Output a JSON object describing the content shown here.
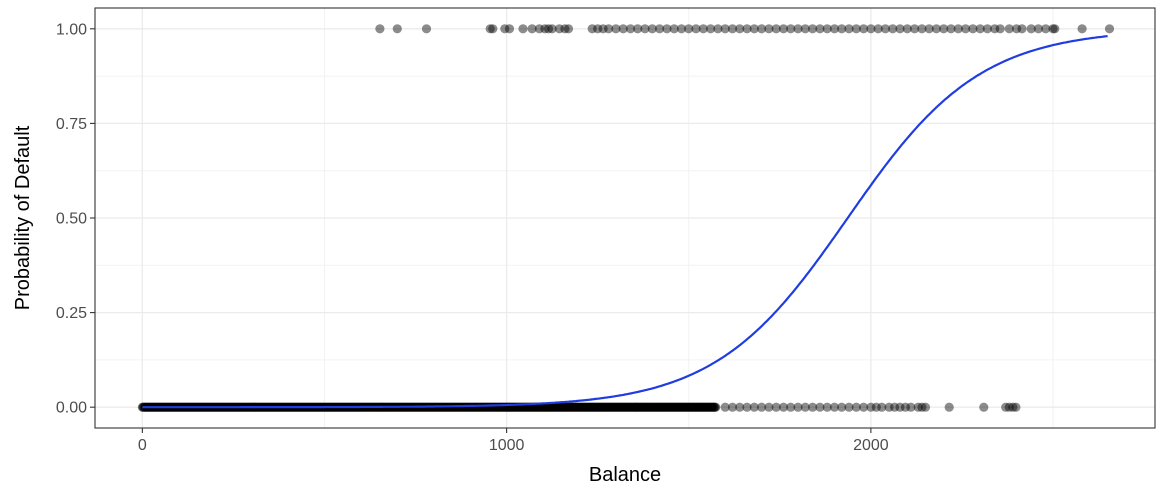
{
  "chart_data": {
    "type": "scatter",
    "title": "",
    "xlabel": "Balance",
    "ylabel": "Probability of Default",
    "xlim": [
      -130,
      2780
    ],
    "ylim": [
      -0.055,
      1.055
    ],
    "x_ticks": [
      0,
      1000,
      2000
    ],
    "x_tick_labels": [
      "0",
      "1000",
      "2000"
    ],
    "y_ticks": [
      0,
      0.25,
      0.5,
      0.75,
      1
    ],
    "y_tick_labels": [
      "0.00",
      "0.25",
      "0.50",
      "0.75",
      "1.00"
    ],
    "grid": true,
    "legend": "none",
    "point_color": "#000000",
    "point_opacity": 0.45,
    "curve_color": "#1f3de0",
    "series": [
      {
        "type": "scatter",
        "points_default_1": [
          [
            652,
            1
          ],
          [
            700,
            1
          ],
          [
            780,
            1
          ],
          [
            955,
            1
          ],
          [
            962,
            1
          ],
          [
            995,
            1
          ],
          [
            1008,
            1
          ],
          [
            1045,
            1
          ],
          [
            1070,
            1
          ],
          [
            1090,
            1
          ],
          [
            1105,
            1
          ],
          [
            1115,
            1
          ],
          [
            1125,
            1
          ],
          [
            1145,
            1
          ],
          [
            1160,
            1
          ],
          [
            1170,
            1
          ],
          [
            1235,
            1
          ],
          [
            1250,
            1
          ],
          [
            1265,
            1
          ],
          [
            1280,
            1
          ],
          [
            1300,
            1
          ],
          [
            1320,
            1
          ],
          [
            1340,
            1
          ],
          [
            1360,
            1
          ],
          [
            1380,
            1
          ],
          [
            1400,
            1
          ],
          [
            1420,
            1
          ],
          [
            1440,
            1
          ],
          [
            1460,
            1
          ],
          [
            1480,
            1
          ],
          [
            1500,
            1
          ],
          [
            1520,
            1
          ],
          [
            1540,
            1
          ],
          [
            1560,
            1
          ],
          [
            1580,
            1
          ],
          [
            1600,
            1
          ],
          [
            1620,
            1
          ],
          [
            1640,
            1
          ],
          [
            1660,
            1
          ],
          [
            1680,
            1
          ],
          [
            1700,
            1
          ],
          [
            1720,
            1
          ],
          [
            1740,
            1
          ],
          [
            1760,
            1
          ],
          [
            1780,
            1
          ],
          [
            1800,
            1
          ],
          [
            1820,
            1
          ],
          [
            1840,
            1
          ],
          [
            1860,
            1
          ],
          [
            1880,
            1
          ],
          [
            1900,
            1
          ],
          [
            1920,
            1
          ],
          [
            1940,
            1
          ],
          [
            1960,
            1
          ],
          [
            1980,
            1
          ],
          [
            2000,
            1
          ],
          [
            2020,
            1
          ],
          [
            2040,
            1
          ],
          [
            2060,
            1
          ],
          [
            2080,
            1
          ],
          [
            2100,
            1
          ],
          [
            2120,
            1
          ],
          [
            2140,
            1
          ],
          [
            2160,
            1
          ],
          [
            2180,
            1
          ],
          [
            2200,
            1
          ],
          [
            2220,
            1
          ],
          [
            2240,
            1
          ],
          [
            2260,
            1
          ],
          [
            2280,
            1
          ],
          [
            2300,
            1
          ],
          [
            2320,
            1
          ],
          [
            2340,
            1
          ],
          [
            2355,
            1
          ],
          [
            2380,
            1
          ],
          [
            2400,
            1
          ],
          [
            2415,
            1
          ],
          [
            2440,
            1
          ],
          [
            2460,
            1
          ],
          [
            2480,
            1
          ],
          [
            2500,
            1
          ],
          [
            2505,
            1
          ],
          [
            2580,
            1
          ],
          [
            2655,
            1
          ]
        ],
        "points_default_0_range": [
          0,
          1575
        ],
        "points_default_0": [
          [
            1600,
            0
          ],
          [
            1620,
            0
          ],
          [
            1640,
            0
          ],
          [
            1660,
            0
          ],
          [
            1680,
            0
          ],
          [
            1700,
            0
          ],
          [
            1720,
            0
          ],
          [
            1740,
            0
          ],
          [
            1760,
            0
          ],
          [
            1780,
            0
          ],
          [
            1800,
            0
          ],
          [
            1820,
            0
          ],
          [
            1840,
            0
          ],
          [
            1860,
            0
          ],
          [
            1880,
            0
          ],
          [
            1900,
            0
          ],
          [
            1920,
            0
          ],
          [
            1940,
            0
          ],
          [
            1960,
            0
          ],
          [
            1980,
            0
          ],
          [
            2000,
            0
          ],
          [
            2015,
            0
          ],
          [
            2030,
            0
          ],
          [
            2050,
            0
          ],
          [
            2065,
            0
          ],
          [
            2080,
            0
          ],
          [
            2095,
            0
          ],
          [
            2110,
            0
          ],
          [
            2130,
            0
          ],
          [
            2140,
            0
          ],
          [
            2150,
            0
          ],
          [
            2215,
            0
          ],
          [
            2310,
            0
          ],
          [
            2370,
            0
          ],
          [
            2380,
            0
          ],
          [
            2390,
            0
          ],
          [
            2398,
            0
          ]
        ]
      },
      {
        "type": "line",
        "model": "logistic",
        "intercept": -10.65,
        "slope": 0.0055,
        "x_range": [
          0,
          2654
        ]
      }
    ]
  }
}
